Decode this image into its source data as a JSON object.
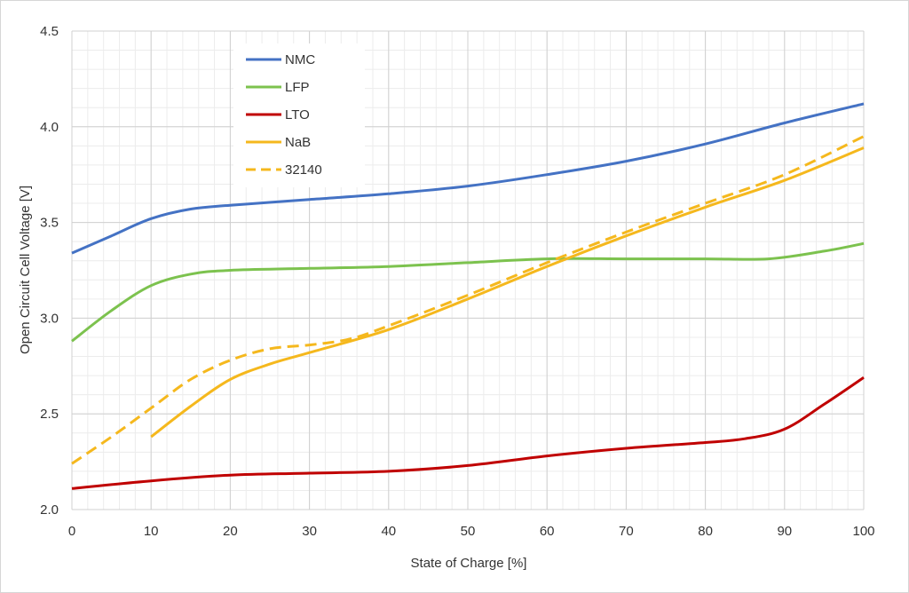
{
  "chart_data": {
    "type": "line",
    "title": "",
    "xlabel": "State of Charge [%]",
    "ylabel": "Open Circuit Cell Voltage [V]",
    "xlim": [
      0,
      100
    ],
    "ylim": [
      2.0,
      4.5
    ],
    "x_ticks": [
      0,
      10,
      20,
      30,
      40,
      50,
      60,
      70,
      80,
      90,
      100
    ],
    "y_ticks": [
      "2.0",
      "2.5",
      "3.0",
      "3.5",
      "4.0",
      "4.5"
    ],
    "x_minor_step": 2,
    "y_minor_step": 0.1,
    "grid": true,
    "legend_position": "top-left",
    "series": [
      {
        "name": "NMC",
        "color": "#4472c4",
        "dash": "solid",
        "x": [
          0,
          5,
          10,
          15,
          20,
          30,
          40,
          50,
          60,
          70,
          80,
          90,
          100
        ],
        "y": [
          3.34,
          3.43,
          3.52,
          3.57,
          3.59,
          3.62,
          3.65,
          3.69,
          3.75,
          3.82,
          3.91,
          4.02,
          4.12
        ]
      },
      {
        "name": "LFP",
        "color": "#7cc24e",
        "dash": "solid",
        "x": [
          0,
          5,
          10,
          15,
          20,
          30,
          40,
          50,
          60,
          70,
          80,
          88,
          95,
          100
        ],
        "y": [
          2.88,
          3.04,
          3.17,
          3.23,
          3.25,
          3.26,
          3.27,
          3.29,
          3.31,
          3.31,
          3.31,
          3.31,
          3.35,
          3.39
        ]
      },
      {
        "name": "LTO",
        "color": "#c00000",
        "dash": "solid",
        "x": [
          0,
          10,
          20,
          30,
          40,
          50,
          60,
          70,
          80,
          85,
          90,
          95,
          100
        ],
        "y": [
          2.11,
          2.15,
          2.18,
          2.19,
          2.2,
          2.23,
          2.28,
          2.32,
          2.35,
          2.37,
          2.42,
          2.55,
          2.69
        ]
      },
      {
        "name": "NaB",
        "color": "#f5b81d",
        "dash": "solid",
        "x": [
          10,
          15,
          20,
          25,
          30,
          40,
          50,
          60,
          70,
          80,
          90,
          100
        ],
        "y": [
          2.38,
          2.54,
          2.68,
          2.76,
          2.82,
          2.94,
          3.1,
          3.27,
          3.43,
          3.58,
          3.72,
          3.89
        ]
      },
      {
        "name": "32140",
        "color": "#f5b81d",
        "dash": "dashed",
        "x": [
          0,
          5,
          10,
          15,
          20,
          25,
          30,
          35,
          40,
          50,
          60,
          70,
          80,
          90,
          100
        ],
        "y": [
          2.24,
          2.38,
          2.53,
          2.68,
          2.78,
          2.84,
          2.86,
          2.89,
          2.96,
          3.12,
          3.29,
          3.45,
          3.6,
          3.75,
          3.95
        ]
      }
    ]
  }
}
